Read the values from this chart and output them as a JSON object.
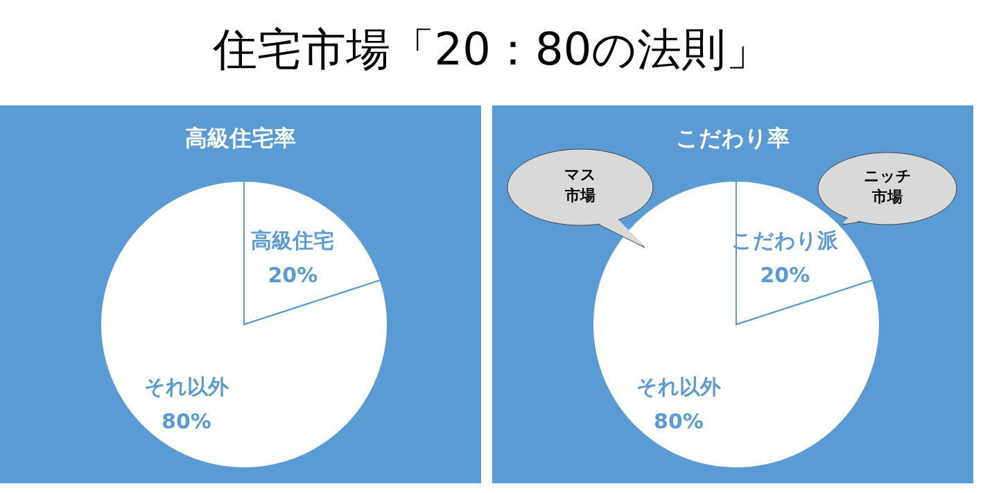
{
  "chart_data": [
    {
      "type": "pie",
      "title": "住宅市場「20：80の法則」",
      "subtitle": "高級住宅率",
      "categories": [
        "高級住宅",
        "それ以外"
      ],
      "values": [
        20,
        80
      ],
      "value_labels": [
        "20%",
        "80%"
      ],
      "colors": [
        "#ffffff",
        "#ffffff"
      ]
    },
    {
      "type": "pie",
      "subtitle": "こだわり率",
      "categories": [
        "こだわり派",
        "それ以外"
      ],
      "values": [
        20,
        80
      ],
      "value_labels": [
        "20%",
        "80%"
      ],
      "colors": [
        "#ffffff",
        "#ffffff"
      ],
      "annotations": [
        "マス市場",
        "ニッチ市場"
      ]
    }
  ]
}
